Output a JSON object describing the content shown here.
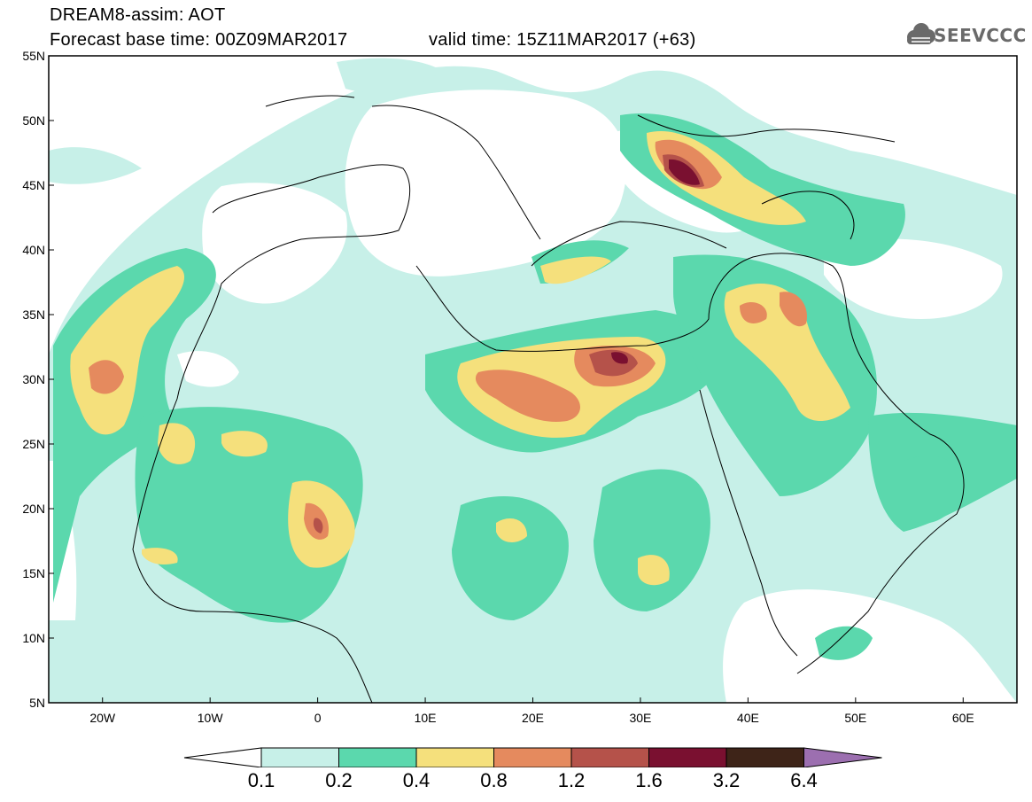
{
  "header": {
    "line1": "DREAM8-assim: AOT",
    "line2": "Forecast base time: 00Z09MAR2017",
    "line3": "valid time: 15Z11MAR2017 (+63)",
    "logo_text": "SEEVCCC"
  },
  "map": {
    "lon_range": [
      -25,
      65
    ],
    "lat_range": [
      5,
      55
    ],
    "lat_ticks": [
      "55N",
      "50N",
      "45N",
      "40N",
      "35N",
      "30N",
      "25N",
      "20N",
      "15N",
      "10N",
      "5N"
    ],
    "lon_ticks": [
      "20W",
      "10W",
      "0",
      "10E",
      "20E",
      "30E",
      "40E",
      "50E",
      "60E"
    ],
    "frame_color": "#000000"
  },
  "colorbar": {
    "labels": [
      "0.1",
      "0.2",
      "0.4",
      "0.8",
      "1.2",
      "1.6",
      "3.2",
      "6.4"
    ],
    "colors": [
      "#ffffff",
      "#c7f0e8",
      "#5bd8ad",
      "#f5e07c",
      "#e58a5e",
      "#b5524a",
      "#7a1030",
      "#3e2418",
      "#9c6fb0"
    ]
  }
}
